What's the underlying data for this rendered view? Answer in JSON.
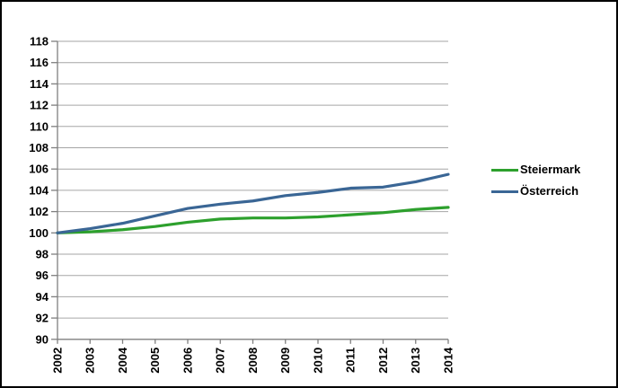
{
  "frame": {
    "background_color": "#ffffff",
    "border_color": "#000000",
    "gridline_color": "#a6a6a6",
    "axis_color": "#7f7f7f",
    "label_color": "#000000"
  },
  "chart_data": {
    "type": "line",
    "title": "",
    "xlabel": "",
    "ylabel": "",
    "x": [
      2002,
      2003,
      2004,
      2005,
      2006,
      2007,
      2008,
      2009,
      2010,
      2011,
      2012,
      2013,
      2014
    ],
    "series": [
      {
        "name": "Steiermark",
        "color": "#2da02d",
        "values": [
          100.0,
          100.1,
          100.3,
          100.6,
          101.0,
          101.3,
          101.4,
          101.4,
          101.5,
          101.7,
          101.9,
          102.2,
          102.4
        ]
      },
      {
        "name": "Österreich",
        "color": "#3a6695",
        "values": [
          100.0,
          100.4,
          100.9,
          101.6,
          102.3,
          102.7,
          103.0,
          103.5,
          103.8,
          104.2,
          104.3,
          104.8,
          105.5
        ]
      }
    ],
    "ylim": [
      90,
      118
    ],
    "ytick_step": 2,
    "grid": true,
    "legend_position": "right",
    "x_labels_rotated_degrees": 90,
    "index_base_note": ""
  }
}
